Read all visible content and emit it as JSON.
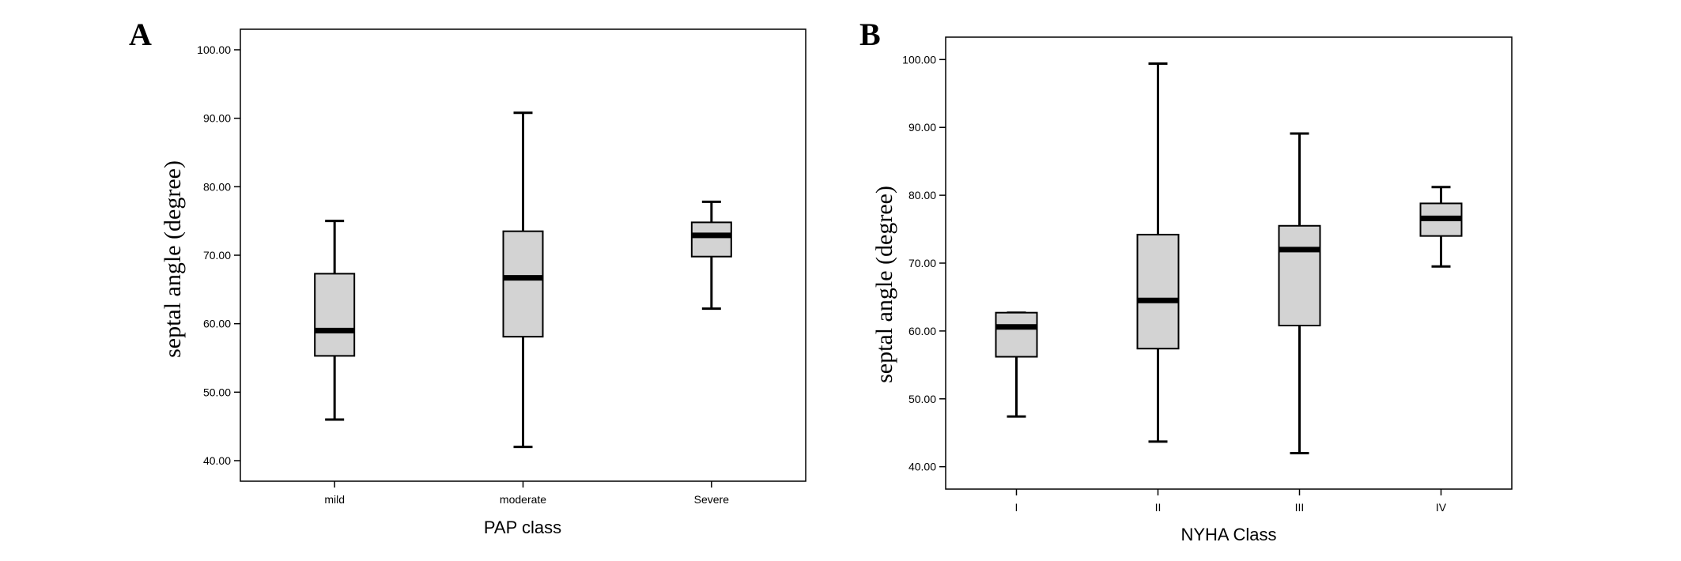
{
  "chart_data": [
    {
      "type": "box",
      "panel_label": "A",
      "xlabel": "PAP class",
      "ylabel": "septal angle (degree)",
      "ylim": [
        37,
        103
      ],
      "yticks": [
        "40.00",
        "50.00",
        "60.00",
        "70.00",
        "80.00",
        "90.00",
        "100.00"
      ],
      "categories": [
        "mild",
        "moderate",
        "Severe"
      ],
      "boxes": [
        {
          "min": 46.0,
          "q1": 55.3,
          "median": 59.0,
          "q3": 67.3,
          "max": 75.0
        },
        {
          "min": 42.0,
          "q1": 58.1,
          "median": 66.7,
          "q3": 73.5,
          "max": 90.8
        },
        {
          "min": 62.2,
          "q1": 69.8,
          "median": 72.9,
          "q3": 74.8,
          "max": 77.8
        }
      ],
      "box_color": "#d3d3d3",
      "grid": false
    },
    {
      "type": "box",
      "panel_label": "B",
      "xlabel": "NYHA Class",
      "ylabel": "septal angle (degree)",
      "ylim": [
        36.7,
        103.3
      ],
      "yticks": [
        "40.00",
        "50.00",
        "60.00",
        "70.00",
        "80.00",
        "90.00",
        "100.00"
      ],
      "categories": [
        "I",
        "II",
        "III",
        "IV"
      ],
      "boxes": [
        {
          "min": 47.4,
          "q1": 56.2,
          "median": 60.6,
          "q3": 62.7,
          "max": 62.7
        },
        {
          "min": 43.7,
          "q1": 57.4,
          "median": 64.5,
          "q3": 74.2,
          "max": 99.4
        },
        {
          "min": 42.0,
          "q1": 60.8,
          "median": 72.0,
          "q3": 75.5,
          "max": 89.1
        },
        {
          "min": 69.5,
          "q1": 74.0,
          "median": 76.6,
          "q3": 78.8,
          "max": 81.2
        }
      ],
      "box_color": "#d3d3d3",
      "grid": false
    }
  ]
}
